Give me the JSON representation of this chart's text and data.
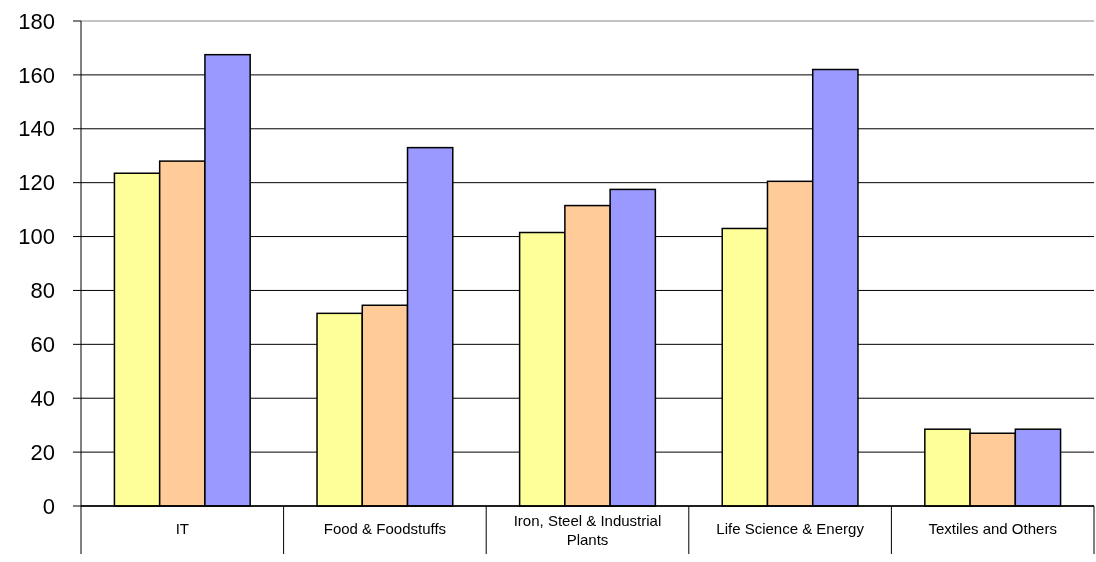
{
  "chart_data": {
    "type": "bar",
    "categories": [
      "IT",
      "Food & Foodstuffs",
      "Iron, Steel & Industrial Plants",
      "Life Science & Energy",
      "Textiles and Others"
    ],
    "series": [
      {
        "color": "#ffff99",
        "values": [
          123.5,
          71.5,
          101.5,
          103,
          28.5
        ]
      },
      {
        "color": "#ffcc99",
        "values": [
          128,
          74.5,
          111.5,
          120.5,
          27
        ]
      },
      {
        "color": "#9999ff",
        "values": [
          167.5,
          133,
          117.5,
          162,
          28.5
        ]
      }
    ],
    "ylim": [
      0,
      180
    ],
    "yticks": [
      0,
      20,
      40,
      60,
      80,
      100,
      120,
      140,
      160,
      180
    ],
    "grid": "y"
  }
}
